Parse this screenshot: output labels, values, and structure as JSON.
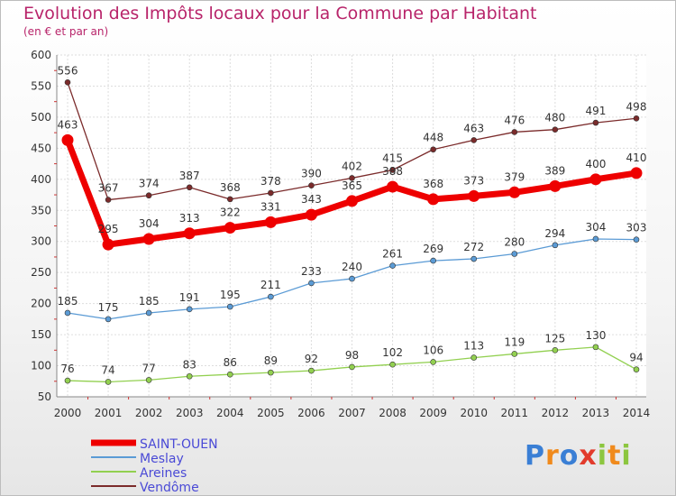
{
  "header": {
    "title": "Evolution des Impôts locaux pour la Commune par Habitant",
    "subtitle": "(en € et par an)"
  },
  "logo": {
    "text": "Proxiti"
  },
  "chart_data": {
    "type": "line",
    "title": "Evolution des Impôts locaux pour la Commune par Habitant",
    "subtitle": "(en € et par an)",
    "x": [
      2000,
      2001,
      2002,
      2003,
      2004,
      2005,
      2006,
      2007,
      2008,
      2009,
      2010,
      2011,
      2012,
      2013,
      2014
    ],
    "ylim": [
      50,
      600
    ],
    "yticks": [
      50,
      100,
      150,
      200,
      250,
      300,
      350,
      400,
      450,
      500,
      550,
      600
    ],
    "grid": true,
    "legend_position": "bottom-left",
    "series": [
      {
        "name": "SAINT-OUEN",
        "color": "#ee0000",
        "highlight": true,
        "values": [
          463,
          295,
          304,
          313,
          322,
          331,
          343,
          365,
          388,
          368,
          373,
          379,
          389,
          400,
          410
        ]
      },
      {
        "name": "Meslay",
        "color": "#5b9bd5",
        "values": [
          185,
          175,
          185,
          191,
          195,
          211,
          233,
          240,
          261,
          269,
          272,
          280,
          294,
          304,
          303
        ]
      },
      {
        "name": "Areines",
        "color": "#92d050",
        "values": [
          76,
          74,
          77,
          83,
          86,
          89,
          92,
          98,
          102,
          106,
          113,
          119,
          125,
          130,
          94
        ]
      },
      {
        "name": "Vendôme",
        "color": "#7b2b2b",
        "values": [
          556,
          367,
          374,
          387,
          368,
          378,
          390,
          402,
          415,
          448,
          463,
          476,
          480,
          491,
          498
        ]
      }
    ]
  }
}
